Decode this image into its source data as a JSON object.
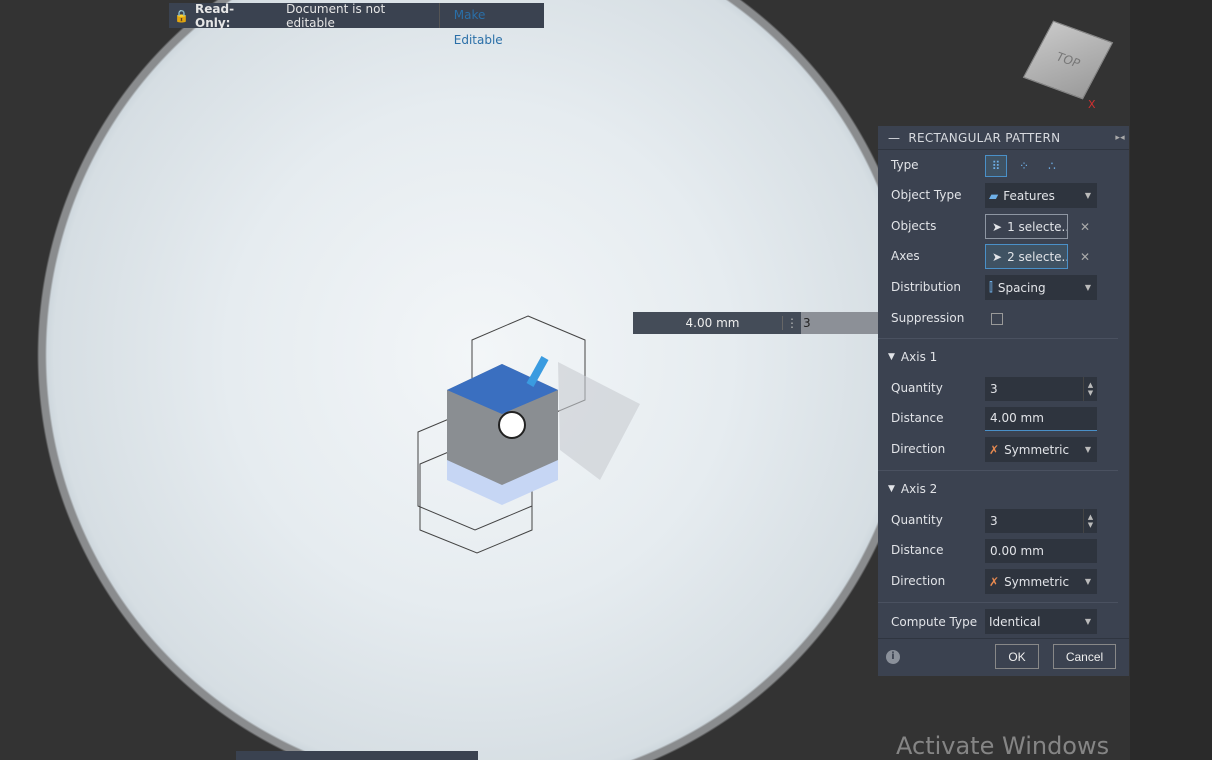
{
  "readonly": {
    "label": "Read-Only:",
    "message": "Document is not editable",
    "action": "Make Editable"
  },
  "viewcube": {
    "face": "TOP",
    "x_axis": "X"
  },
  "dimension": {
    "distance": "4.00 mm",
    "quantity": "3"
  },
  "panel": {
    "title": "RECTANGULAR PATTERN",
    "type_label": "Type",
    "object_type": {
      "label": "Object Type",
      "value": "Features"
    },
    "objects": {
      "label": "Objects",
      "value": "1 selecte..."
    },
    "axes": {
      "label": "Axes",
      "value": "2 selecte..."
    },
    "distribution": {
      "label": "Distribution",
      "value": "Spacing"
    },
    "suppression": {
      "label": "Suppression",
      "checked": false
    },
    "axis1": {
      "title": "Axis 1",
      "quantity_label": "Quantity",
      "quantity": "3",
      "distance_label": "Distance",
      "distance": "4.00 mm",
      "direction_label": "Direction",
      "direction": "Symmetric"
    },
    "axis2": {
      "title": "Axis 2",
      "quantity_label": "Quantity",
      "quantity": "3",
      "distance_label": "Distance",
      "distance": "0.00 mm",
      "direction_label": "Direction",
      "direction": "Symmetric"
    },
    "compute_type": {
      "label": "Compute Type",
      "value": "Identical"
    },
    "ok": "OK",
    "cancel": "Cancel"
  },
  "watermark": "Activate Windows",
  "colors": {
    "accent": "#4a90c8",
    "panel": "#3b4250",
    "lock": "#f0a030"
  }
}
